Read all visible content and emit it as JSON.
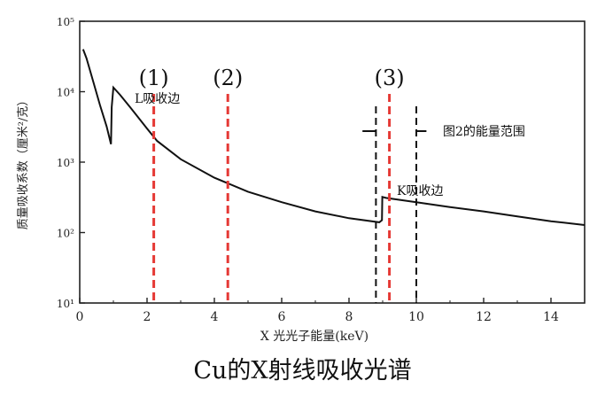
{
  "chart_data": {
    "type": "line",
    "title": "",
    "xlabel": "X 光光子能量(keV)",
    "ylabel": "质量吸收系数（厘米²/克）",
    "xlim": [
      0,
      15
    ],
    "ylim_log10": [
      2,
      5
    ],
    "y_log_scale": true,
    "x_ticks": [
      0,
      2,
      4,
      6,
      8,
      10,
      12,
      14
    ],
    "x_tick_labels": [
      "0",
      "2",
      "4",
      "6",
      "8",
      "10",
      "12",
      "14"
    ],
    "y_ticks": [
      10,
      100,
      1000,
      10000,
      100000
    ],
    "y_tick_labels": [
      "10¹",
      "10²",
      "10³",
      "10⁴",
      "10⁵"
    ],
    "series": [
      {
        "name": "",
        "points": [
          [
            0.1,
            40000
          ],
          [
            0.2,
            30000
          ],
          [
            0.4,
            14000
          ],
          [
            0.6,
            6500
          ],
          [
            0.8,
            3200
          ],
          [
            0.93,
            1800
          ],
          [
            0.95,
            6000
          ],
          [
            1.0,
            11500
          ],
          [
            1.2,
            9000
          ],
          [
            1.5,
            6000
          ],
          [
            2.0,
            3000
          ],
          [
            2.3,
            2000
          ],
          [
            3.0,
            1100
          ],
          [
            4.0,
            600
          ],
          [
            5.0,
            380
          ],
          [
            6.0,
            270
          ],
          [
            7.0,
            200
          ],
          [
            8.0,
            160
          ],
          [
            8.9,
            140
          ],
          [
            8.98,
            150
          ],
          [
            8.99,
            320
          ],
          [
            9.1,
            310
          ],
          [
            10.0,
            270
          ],
          [
            11.0,
            230
          ],
          [
            12.0,
            200
          ],
          [
            13.0,
            170
          ],
          [
            14.0,
            145
          ],
          [
            15.0,
            128
          ]
        ]
      }
    ],
    "markers": [
      {
        "x": 2.2,
        "label": "(1)",
        "color": "#e53935"
      },
      {
        "x": 4.4,
        "label": "(2)",
        "color": "#e53935"
      },
      {
        "x": 9.2,
        "label": "(3)",
        "color": "#e53935"
      }
    ],
    "annotations": [
      {
        "text": "L吸收边"
      },
      {
        "text": "K吸收边"
      },
      {
        "text": "图2的能量范围"
      }
    ],
    "bracket_dashed_lines": [
      8.8,
      10.0
    ]
  },
  "caption": "Cu的X射线吸收光谱"
}
